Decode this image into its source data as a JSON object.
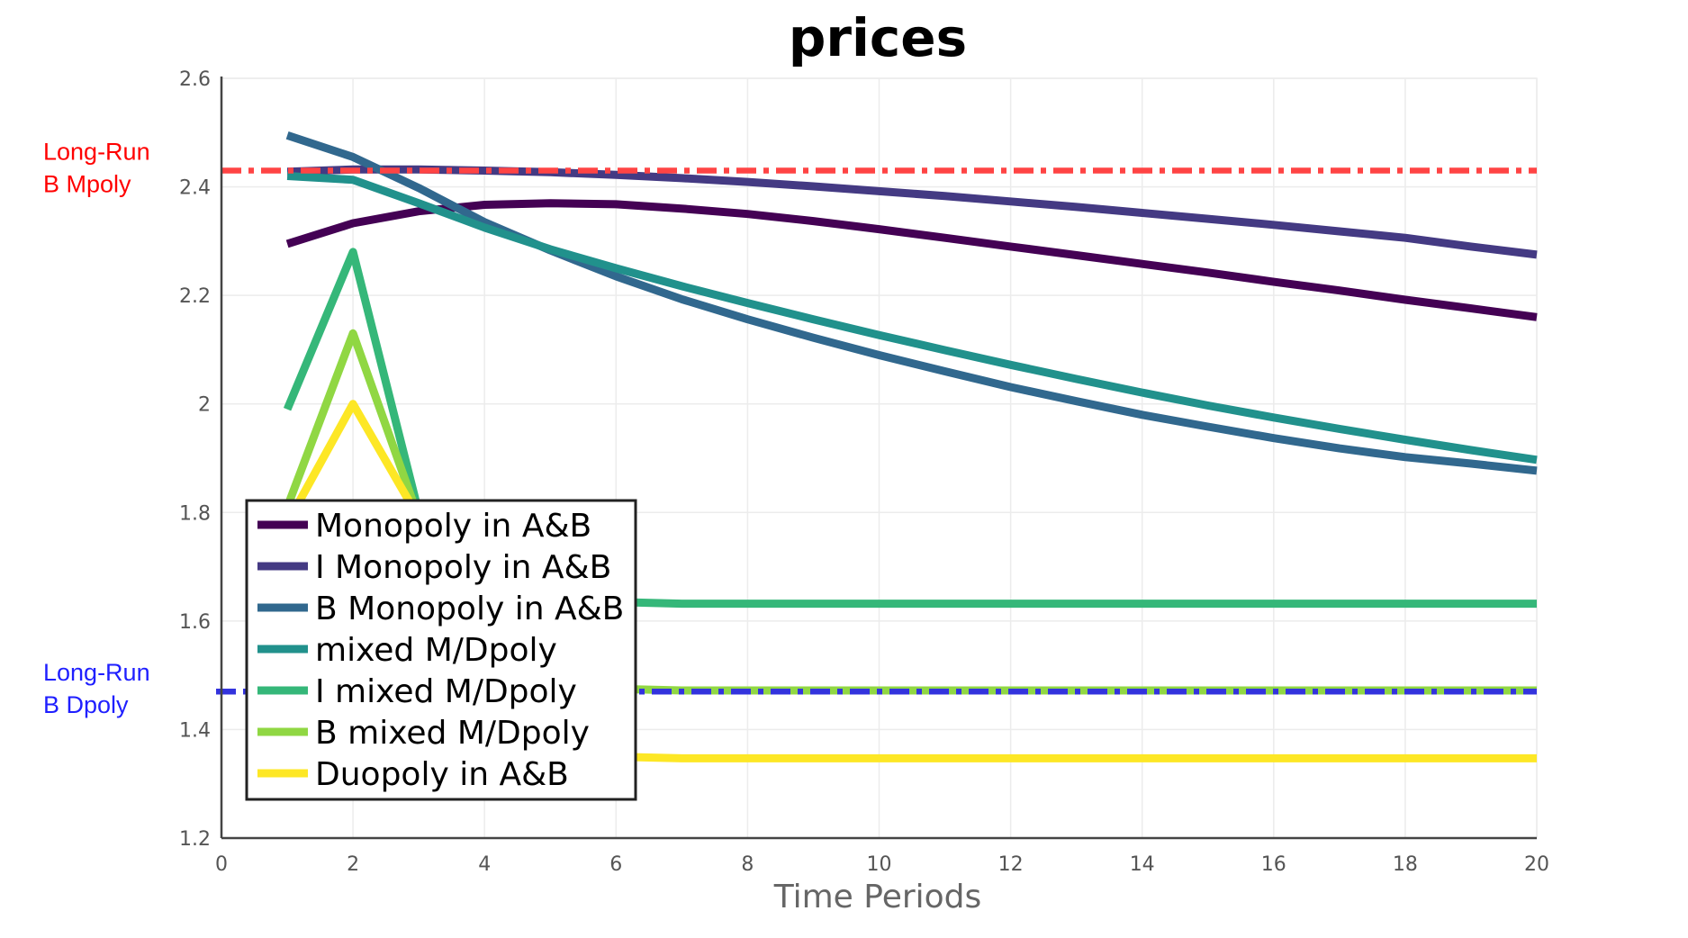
{
  "chart_data": {
    "type": "line",
    "title": "prices",
    "xlabel": "Time Periods",
    "ylabel": "",
    "xlim": [
      0,
      20
    ],
    "ylim": [
      1.2,
      2.6
    ],
    "x_ticks": [
      "0",
      "2",
      "4",
      "6",
      "8",
      "10",
      "12",
      "14",
      "16",
      "18",
      "20"
    ],
    "y_ticks": [
      "1.2",
      "1.4",
      "1.6",
      "1.8",
      "2",
      "2.2",
      "2.4",
      "2.6"
    ],
    "grid": true,
    "legend_position": "bottom-left",
    "reference_lines": [
      {
        "label_lines": [
          "Long-Run",
          "B Mpoly"
        ],
        "y": 2.43,
        "color": "#ff4444",
        "label_color": "#ff0000",
        "style": "dash-dot"
      },
      {
        "label_lines": [
          "Long-Run",
          "B Dpoly"
        ],
        "y": 1.47,
        "color": "#3333dd",
        "label_color": "#1f1fff",
        "style": "dash-dot"
      }
    ],
    "series": [
      {
        "name": "Monopoly in A&B",
        "color": "#440154",
        "x": [
          1,
          2,
          3,
          4,
          5,
          6,
          7,
          8,
          9,
          10,
          11,
          12,
          13,
          14,
          15,
          16,
          17,
          18,
          19,
          20
        ],
        "y": [
          2.295,
          2.333,
          2.355,
          2.367,
          2.37,
          2.368,
          2.36,
          2.35,
          2.337,
          2.322,
          2.306,
          2.29,
          2.274,
          2.258,
          2.242,
          2.225,
          2.209,
          2.192,
          2.176,
          2.16
        ]
      },
      {
        "name": "I Monopoly in A&B",
        "color": "#443a83",
        "x": [
          1,
          2,
          3,
          4,
          5,
          6,
          7,
          8,
          9,
          10,
          11,
          12,
          13,
          14,
          15,
          16,
          17,
          18,
          19,
          20
        ],
        "y": [
          2.428,
          2.432,
          2.432,
          2.43,
          2.427,
          2.422,
          2.416,
          2.409,
          2.401,
          2.392,
          2.383,
          2.373,
          2.363,
          2.352,
          2.341,
          2.33,
          2.318,
          2.306,
          2.29,
          2.275
        ]
      },
      {
        "name": "B Monopoly in A&B",
        "color": "#31688e",
        "x": [
          1,
          2,
          3,
          4,
          5,
          6,
          7,
          8,
          9,
          10,
          11,
          12,
          13,
          14,
          15,
          16,
          17,
          18,
          19,
          20
        ],
        "y": [
          2.495,
          2.455,
          2.398,
          2.335,
          2.283,
          2.235,
          2.193,
          2.156,
          2.122,
          2.09,
          2.06,
          2.031,
          2.005,
          1.98,
          1.958,
          1.937,
          1.918,
          1.902,
          1.89,
          1.877
        ]
      },
      {
        "name": "mixed M/Dpoly",
        "color": "#21918c",
        "x": [
          1,
          2,
          3,
          4,
          5,
          6,
          7,
          8,
          9,
          10,
          11,
          12,
          13,
          14,
          15,
          16,
          17,
          18,
          19,
          20
        ],
        "y": [
          2.42,
          2.413,
          2.37,
          2.325,
          2.285,
          2.25,
          2.217,
          2.186,
          2.156,
          2.127,
          2.099,
          2.072,
          2.046,
          2.021,
          1.997,
          1.975,
          1.954,
          1.934,
          1.915,
          1.897
        ]
      },
      {
        "name": "I mixed M/Dpoly",
        "color": "#35b779",
        "x": [
          1,
          2,
          3,
          4,
          5,
          6,
          7,
          8,
          9,
          10,
          11,
          12,
          13,
          14,
          15,
          16,
          17,
          18,
          19,
          20
        ],
        "y": [
          1.99,
          2.28,
          1.8,
          1.65,
          1.64,
          1.635,
          1.632,
          1.632,
          1.632,
          1.632,
          1.632,
          1.632,
          1.632,
          1.632,
          1.632,
          1.632,
          1.632,
          1.632,
          1.632,
          1.632
        ]
      },
      {
        "name": "B mixed M/Dpoly",
        "color": "#90d743",
        "x": [
          1,
          2,
          3,
          4,
          5,
          6,
          7,
          8,
          9,
          10,
          11,
          12,
          13,
          14,
          15,
          16,
          17,
          18,
          19,
          20
        ],
        "y": [
          1.81,
          2.13,
          1.79,
          1.5,
          1.48,
          1.475,
          1.472,
          1.472,
          1.472,
          1.472,
          1.472,
          1.472,
          1.472,
          1.472,
          1.472,
          1.472,
          1.472,
          1.472,
          1.472,
          1.472
        ]
      },
      {
        "name": "Duopoly in A&B",
        "color": "#fde725",
        "x": [
          1,
          2,
          3,
          4,
          5,
          6,
          7,
          8,
          9,
          10,
          11,
          12,
          13,
          14,
          15,
          16,
          17,
          18,
          19,
          20
        ],
        "y": [
          1.78,
          2.0,
          1.79,
          1.37,
          1.355,
          1.35,
          1.347,
          1.347,
          1.347,
          1.347,
          1.347,
          1.347,
          1.347,
          1.347,
          1.347,
          1.347,
          1.347,
          1.347,
          1.347,
          1.347
        ]
      }
    ]
  }
}
